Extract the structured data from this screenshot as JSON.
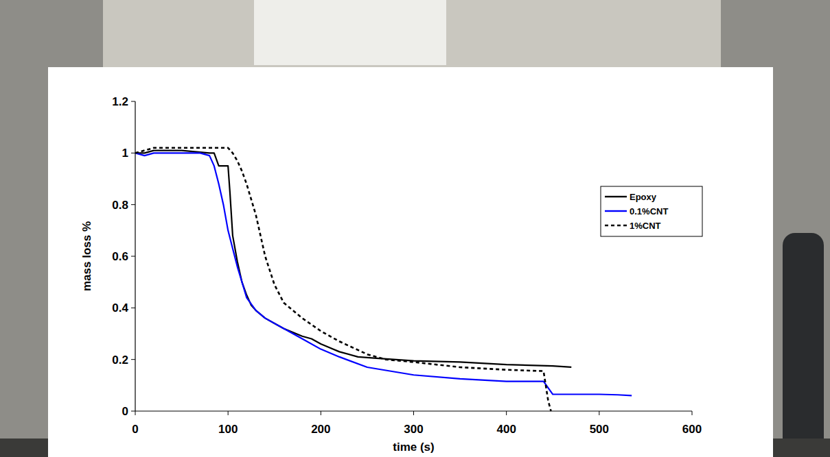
{
  "chart_data": {
    "type": "line",
    "x_label": "time (s)",
    "y_label": "mass loss %",
    "xlim": [
      0,
      600
    ],
    "xticks": [
      0,
      100,
      200,
      300,
      400,
      500,
      600
    ],
    "ylim": [
      0,
      1.2
    ],
    "yticks": [
      0,
      0.2,
      0.4,
      0.6,
      0.8,
      1,
      1.2
    ],
    "grid": false,
    "legend": "right",
    "series": [
      {
        "name": "Epoxy",
        "color": "#000000",
        "line_style": "solid",
        "x": [
          0,
          10,
          20,
          30,
          50,
          80,
          85,
          90,
          95,
          100,
          102,
          105,
          110,
          115,
          120,
          125,
          130,
          140,
          150,
          160,
          180,
          190,
          200,
          220,
          240,
          260,
          300,
          350,
          400,
          450,
          470
        ],
        "values": [
          1,
          1,
          1.01,
          1.01,
          1.01,
          1.0,
          1.0,
          0.95,
          0.95,
          0.95,
          0.85,
          0.68,
          0.58,
          0.5,
          0.45,
          0.41,
          0.39,
          0.36,
          0.34,
          0.32,
          0.29,
          0.28,
          0.26,
          0.23,
          0.21,
          0.205,
          0.195,
          0.19,
          0.18,
          0.175,
          0.17
        ]
      },
      {
        "name": "0.1%CNT",
        "color": "#0000ff",
        "line_style": "solid",
        "x": [
          0,
          10,
          20,
          30,
          50,
          70,
          80,
          85,
          90,
          95,
          100,
          105,
          110,
          115,
          120,
          130,
          140,
          160,
          180,
          200,
          220,
          250,
          300,
          350,
          400,
          440,
          445,
          450,
          500,
          520,
          535
        ],
        "values": [
          1,
          0.99,
          1.0,
          1.0,
          1.0,
          1.0,
          0.99,
          0.95,
          0.88,
          0.8,
          0.7,
          0.63,
          0.56,
          0.5,
          0.44,
          0.39,
          0.36,
          0.32,
          0.28,
          0.24,
          0.21,
          0.17,
          0.14,
          0.125,
          0.115,
          0.115,
          0.09,
          0.065,
          0.065,
          0.063,
          0.06
        ]
      },
      {
        "name": "1%CNT",
        "color": "#000000",
        "line_style": "dashed",
        "x": [
          0,
          10,
          20,
          40,
          60,
          80,
          95,
          100,
          105,
          110,
          115,
          120,
          125,
          130,
          135,
          140,
          150,
          160,
          180,
          200,
          220,
          250,
          270,
          300,
          350,
          400,
          440,
          445,
          448
        ],
        "values": [
          1.0,
          1.01,
          1.02,
          1.02,
          1.02,
          1.02,
          1.02,
          1.02,
          1.0,
          0.97,
          0.93,
          0.88,
          0.82,
          0.76,
          0.68,
          0.6,
          0.49,
          0.42,
          0.36,
          0.31,
          0.27,
          0.22,
          0.2,
          0.19,
          0.17,
          0.16,
          0.155,
          0.04,
          0.0
        ]
      }
    ]
  }
}
